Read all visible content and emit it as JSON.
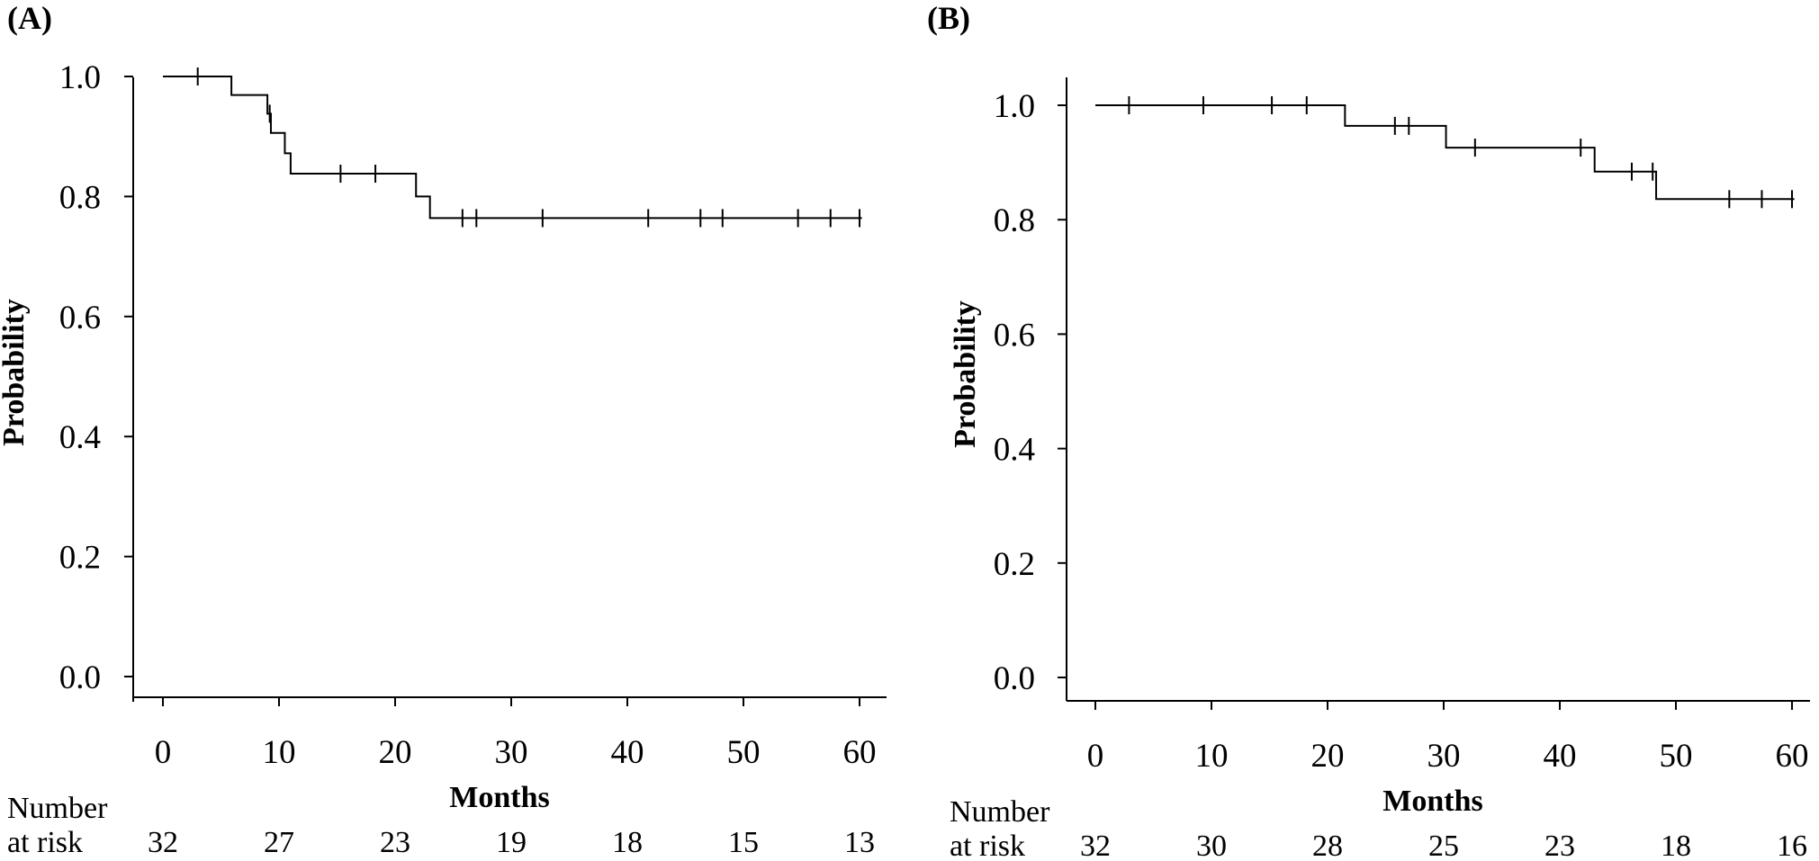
{
  "chart_data": [
    {
      "type": "line",
      "panel_label": "(A)",
      "xlabel": "Months",
      "ylabel": "Probability",
      "xlim": [
        0,
        60
      ],
      "ylim": [
        0,
        1
      ],
      "x_ticks": [
        "0",
        "10",
        "20",
        "30",
        "40",
        "50",
        "60"
      ],
      "y_ticks": [
        "0.0",
        "0.2",
        "0.4",
        "0.6",
        "0.8",
        "1.0"
      ],
      "series": [
        {
          "steps": [
            {
              "x": 0,
              "y": 1.0
            },
            {
              "x": 5.9,
              "y": 0.969
            },
            {
              "x": 9.0,
              "y": 0.938
            },
            {
              "x": 9.3,
              "y": 0.906
            },
            {
              "x": 10.5,
              "y": 0.872
            },
            {
              "x": 11.0,
              "y": 0.838
            },
            {
              "x": 21.8,
              "y": 0.8
            },
            {
              "x": 23.0,
              "y": 0.764
            },
            {
              "x": 60.2,
              "y": 0.764
            }
          ],
          "censored": [
            3.0,
            9.2,
            15.3,
            18.3,
            25.8,
            27.0,
            32.7,
            41.8,
            46.3,
            48.2,
            54.7,
            57.5,
            60.0
          ]
        }
      ],
      "risk_table": {
        "label_line1": "Number",
        "label_line2": "at risk",
        "values": [
          "32",
          "27",
          "23",
          "19",
          "18",
          "15",
          "13"
        ]
      }
    },
    {
      "type": "line",
      "panel_label": "(B)",
      "xlabel": "Months",
      "ylabel": "Probability",
      "xlim": [
        0,
        60
      ],
      "ylim": [
        0,
        1
      ],
      "x_ticks": [
        "0",
        "10",
        "20",
        "30",
        "40",
        "50",
        "60"
      ],
      "y_ticks": [
        "0.0",
        "0.2",
        "0.4",
        "0.6",
        "0.8",
        "1.0"
      ],
      "series": [
        {
          "steps": [
            {
              "x": 0,
              "y": 1.0
            },
            {
              "x": 21.5,
              "y": 0.964
            },
            {
              "x": 30.2,
              "y": 0.926
            },
            {
              "x": 43.0,
              "y": 0.884
            },
            {
              "x": 48.3,
              "y": 0.836
            },
            {
              "x": 60.2,
              "y": 0.836
            }
          ],
          "censored": [
            2.9,
            9.3,
            15.2,
            18.2,
            25.8,
            27.0,
            32.7,
            41.8,
            46.2,
            48.0,
            54.6,
            57.4,
            60.0
          ]
        }
      ],
      "risk_table": {
        "label_line1": "Number",
        "label_line2": "at risk",
        "values": [
          "32",
          "30",
          "28",
          "25",
          "23",
          "18",
          "16"
        ]
      }
    }
  ]
}
